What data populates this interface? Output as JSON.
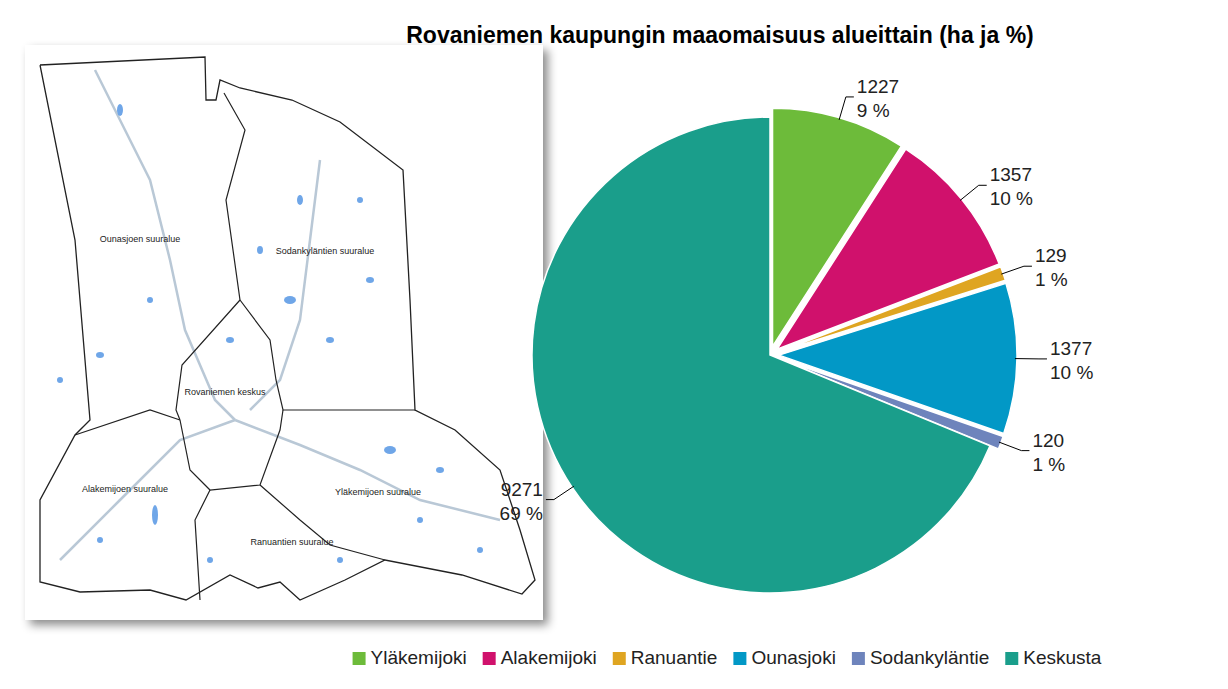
{
  "chart_data": {
    "type": "pie",
    "title": "Rovaniemen kaupungin maaomaisuus alueittain (ha ja %)",
    "categories": [
      "Yläkemijoki",
      "Alakemijoki",
      "Ranuantie",
      "Ounasjoki",
      "Sodankyläntie",
      "Keskusta"
    ],
    "values": [
      1227,
      1357,
      129,
      1377,
      120,
      9271
    ],
    "percentages": [
      9,
      10,
      1,
      10,
      1,
      69
    ],
    "percentage_labels": [
      "9 %",
      "10 %",
      "1 %",
      "10 %",
      "1 %",
      "69 %"
    ],
    "colors": [
      "#6dbb3a",
      "#d0116c",
      "#dfa521",
      "#0298c6",
      "#6e84bc",
      "#1a9e8b"
    ],
    "data_labels": true,
    "legend": "bottom",
    "annotations": [
      "Ounasjoen suuralue",
      "Sodankyläntien suuralue",
      "Rovaniemen keskus",
      "Alakemijoen suuralue",
      "Yläkemijoen suuralue",
      "Ranuantien suuralue"
    ]
  }
}
